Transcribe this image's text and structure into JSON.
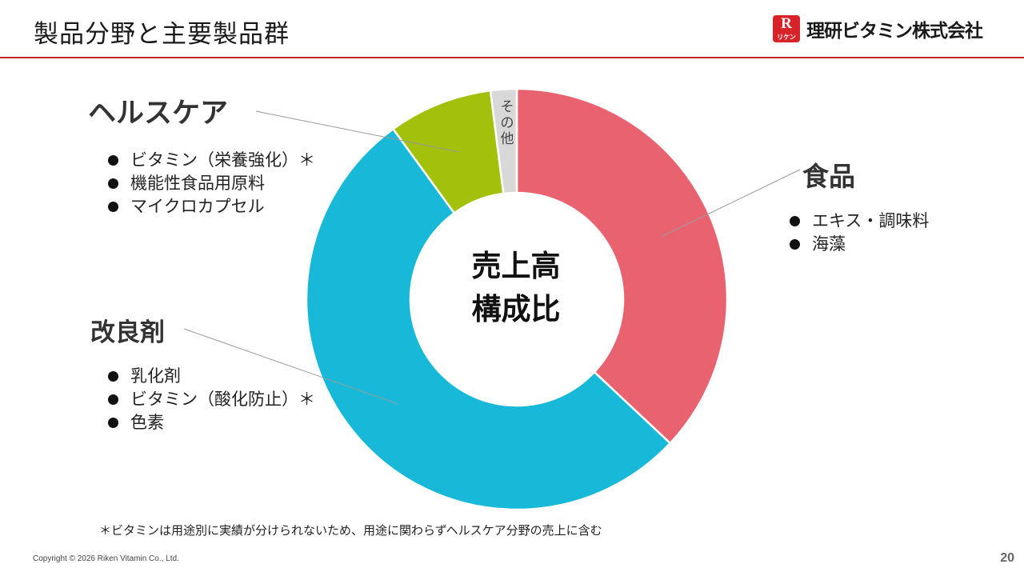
{
  "header": {
    "title": "製品分野と主要製品群",
    "logo_mark": "R",
    "logo_mark_sub": "リケン",
    "logo_text": "理研ビタミン株式会社"
  },
  "chart_data": {
    "type": "pie",
    "donut": true,
    "center_label": [
      "売上高",
      "構成比"
    ],
    "unit": "share of sales (%)",
    "segments": [
      {
        "name": "食品",
        "value": 37,
        "color": "#e8636f",
        "items": [
          "エキス・調味料",
          "海藻"
        ]
      },
      {
        "name": "改良剤",
        "value": 53,
        "color": "#17b8d8",
        "items": [
          "乳化剤",
          "ビタミン（酸化防止）＊",
          "色素"
        ]
      },
      {
        "name": "ヘルスケア",
        "value": 8,
        "color": "#a3c10b",
        "items": [
          "ビタミン（栄養強化）＊",
          "機能性食品用原料",
          "マイクロカプセル"
        ]
      },
      {
        "name": "その他",
        "value": 2,
        "color": "#d8d8d8",
        "items": []
      }
    ]
  },
  "footnote": "＊ビタミンは用途別に実績が分けられないため、用途に関わらずヘルスケア分野の売上に含む",
  "copyright": "Copyright © 2026 Riken Vitamin Co., Ltd.",
  "page_number": "20"
}
